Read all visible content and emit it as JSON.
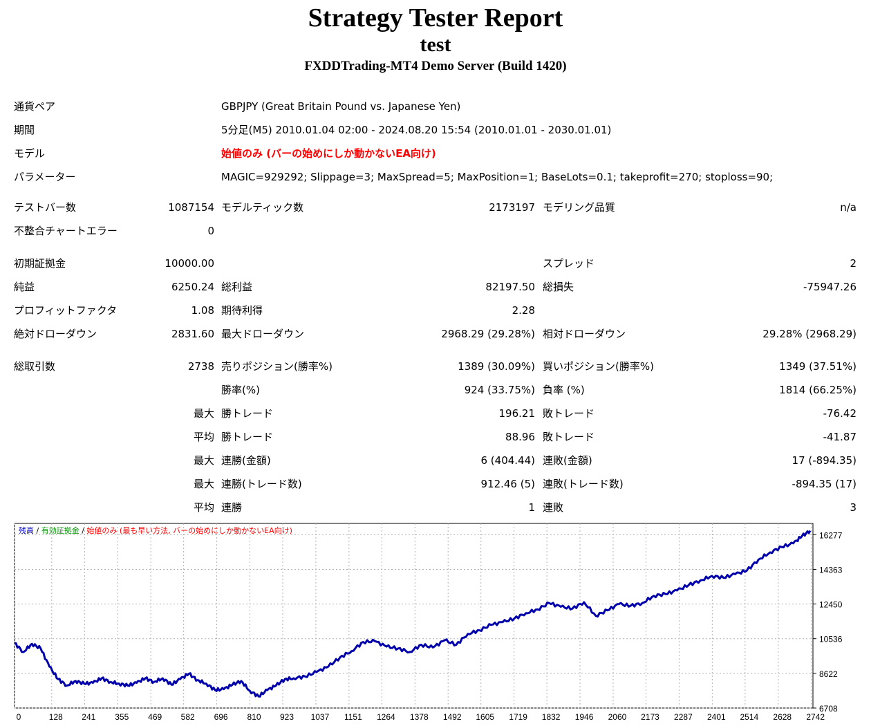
{
  "header": {
    "title": "Strategy Tester Report",
    "name": "test",
    "server": "FXDDTrading-MT4 Demo Server (Build 1420)"
  },
  "info": {
    "symbol_label": "通貨ペア",
    "symbol_value": "GBPJPY (Great Britain Pound vs. Japanese Yen)",
    "period_label": "期間",
    "period_value": "5分足(M5) 2010.01.04 02:00 - 2024.08.20 15:54 (2010.01.01 - 2030.01.01)",
    "model_label": "モデル",
    "model_value": "始値のみ (バーの始めにしか動かないEA向け)",
    "params_label": "パラメーター",
    "params_value": "MAGIC=929292; Slippage=3; MaxSpread=5; MaxPosition=1; BaseLots=0.1; takeprofit=270; stoploss=90;"
  },
  "stats": {
    "bars_label": "テストバー数",
    "bars_value": "1087154",
    "ticks_label": "モデルティック数",
    "ticks_value": "2173197",
    "quality_label": "モデリング品質",
    "quality_value": "n/a",
    "mismatch_label": "不整合チャートエラー",
    "mismatch_value": "0",
    "deposit_label": "初期証拠金",
    "deposit_value": "10000.00",
    "spread_label": "スプレッド",
    "spread_value": "2",
    "net_label": "純益",
    "net_value": "6250.24",
    "gross_profit_label": "総利益",
    "gross_profit_value": "82197.50",
    "gross_loss_label": "総損失",
    "gross_loss_value": "-75947.26",
    "pf_label": "プロフィットファクタ",
    "pf_value": "1.08",
    "expected_label": "期待利得",
    "expected_value": "2.28",
    "abs_dd_label": "絶対ドローダウン",
    "abs_dd_value": "2831.60",
    "max_dd_label": "最大ドローダウン",
    "max_dd_value": "2968.29 (29.28%)",
    "rel_dd_label": "相対ドローダウン",
    "rel_dd_value": "29.28% (2968.29)",
    "trades_label": "総取引数",
    "trades_value": "2738",
    "short_label": "売りポジション(勝率%)",
    "short_value": "1389 (30.09%)",
    "long_label": "買いポジション(勝率%)",
    "long_value": "1349 (37.51%)",
    "win_rate_label": "勝率(%)",
    "win_rate_value": "924 (33.75%)",
    "loss_rate_label": "負率 (%)",
    "loss_rate_value": "1814 (66.25%)",
    "largest_prefix": "最大",
    "largest_win_label": "勝トレード",
    "largest_win_value": "196.21",
    "largest_loss_label": "敗トレード",
    "largest_loss_value": "-76.42",
    "average_prefix": "平均",
    "avg_win_label": "勝トレード",
    "avg_win_value": "88.96",
    "avg_loss_label": "敗トレード",
    "avg_loss_value": "-41.87",
    "max_prefix": "最大",
    "max_consec_wins_label": "連勝(金額)",
    "max_consec_wins_value": "6 (404.44)",
    "max_consec_losses_label": "連敗(金額)",
    "max_consec_losses_value": "17 (-894.35)",
    "max2_prefix": "最大",
    "max_consec_profit_label": "連勝(トレード数)",
    "max_consec_profit_value": "912.46 (5)",
    "max_consec_loss_label": "連敗(トレード数)",
    "max_consec_loss_value": "-894.35 (17)",
    "avg2_prefix": "平均",
    "avg_consec_wins_label": "連勝",
    "avg_consec_wins_value": "1",
    "avg_consec_losses_label": "連敗",
    "avg_consec_losses_value": "3"
  },
  "chart_data": {
    "type": "line",
    "legend": [
      {
        "text": "残高",
        "color": "#0000cc"
      },
      {
        "text": " / ",
        "color": "#000000"
      },
      {
        "text": "有効証拠金",
        "color": "#009900"
      },
      {
        "text": " / ",
        "color": "#000000"
      },
      {
        "text": "始値のみ (最も早い方法, バーの始めにしか動かないEA向け)",
        "color": "#ff0000"
      }
    ],
    "x_ticks": [
      0,
      128,
      241,
      355,
      469,
      582,
      696,
      810,
      923,
      1037,
      1151,
      1264,
      1378,
      1492,
      1605,
      1719,
      1832,
      1946,
      2060,
      2173,
      2287,
      2401,
      2514,
      2628,
      2742
    ],
    "y_ticks": [
      6708,
      8622,
      10536,
      12450,
      14363,
      16277
    ],
    "xlim": [
      0,
      2738
    ],
    "ylim": [
      6708,
      16900
    ],
    "series": [
      {
        "color": "#0000aa",
        "x": [
          0,
          30,
          60,
          90,
          120,
          150,
          180,
          210,
          240,
          270,
          300,
          330,
          360,
          390,
          420,
          450,
          480,
          510,
          540,
          570,
          600,
          630,
          660,
          690,
          720,
          750,
          780,
          810,
          840,
          870,
          900,
          930,
          960,
          1000,
          1040,
          1080,
          1120,
          1160,
          1200,
          1240,
          1280,
          1320,
          1360,
          1400,
          1440,
          1480,
          1520,
          1560,
          1600,
          1640,
          1680,
          1720,
          1760,
          1800,
          1840,
          1880,
          1920,
          1960,
          2000,
          2040,
          2080,
          2120,
          2160,
          2200,
          2240,
          2280,
          2320,
          2360,
          2400,
          2440,
          2480,
          2520,
          2560,
          2600,
          2640,
          2680,
          2710,
          2738
        ],
        "y": [
          10300,
          9800,
          10250,
          10000,
          9000,
          8300,
          7950,
          8200,
          8050,
          8100,
          8350,
          8150,
          8050,
          7950,
          8100,
          8350,
          8150,
          8350,
          8000,
          8300,
          8600,
          8250,
          8050,
          7700,
          7750,
          8000,
          8200,
          7650,
          7350,
          7700,
          7950,
          8300,
          8350,
          8450,
          8700,
          9000,
          9500,
          9850,
          10350,
          10400,
          10100,
          10000,
          9800,
          10200,
          10050,
          10450,
          10200,
          10800,
          11000,
          11300,
          11450,
          11650,
          11950,
          12150,
          12500,
          12300,
          12200,
          12550,
          11800,
          12100,
          12450,
          12350,
          12500,
          12900,
          13000,
          13200,
          13500,
          13750,
          14000,
          13900,
          14100,
          14300,
          14900,
          15300,
          15600,
          15800,
          16200,
          16500
        ]
      }
    ]
  }
}
